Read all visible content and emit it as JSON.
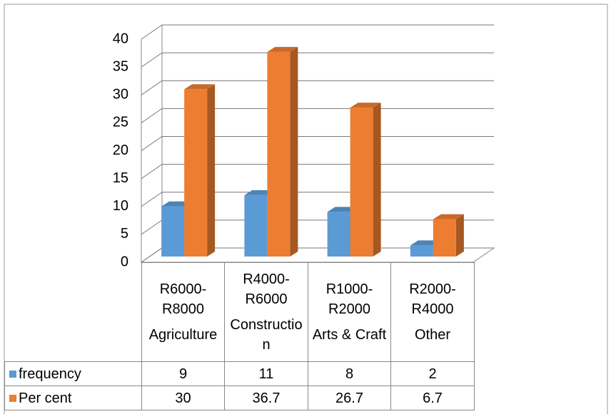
{
  "chart_data": {
    "type": "bar3d",
    "categories": [
      "R6000-R8000",
      "R4000-R6000",
      "R1000-R2000",
      "R2000-R4000"
    ],
    "subcategories": [
      "Agriculture",
      "Construction",
      "Arts & Craft",
      "Other"
    ],
    "series": [
      {
        "name": "frequency",
        "color": "#5b9bd5",
        "values": [
          9,
          11,
          8,
          2
        ]
      },
      {
        "name": "Per cent",
        "color": "#ed7d31",
        "values": [
          30,
          36.7,
          26.7,
          6.7
        ]
      }
    ],
    "ylim": [
      0,
      40
    ],
    "yticks": [
      0,
      5,
      10,
      15,
      20,
      25,
      30,
      35,
      40
    ],
    "grid": true,
    "data_table": true
  }
}
